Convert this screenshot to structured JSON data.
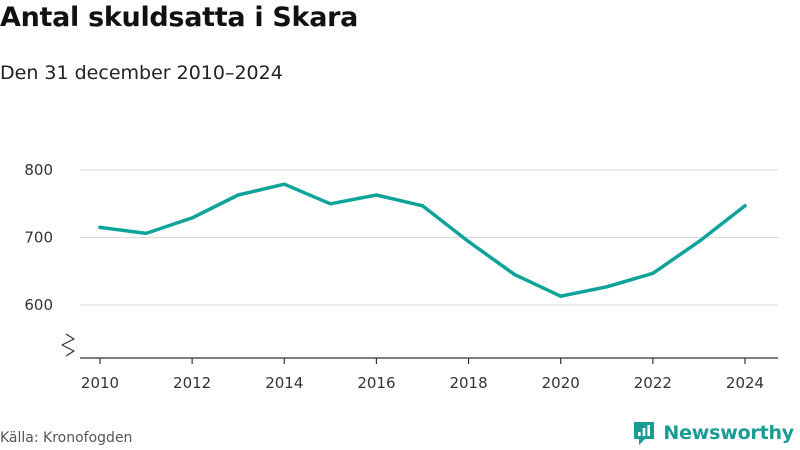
{
  "header": {
    "title": "Antal skuldsatta i Skara",
    "subtitle": "Den 31 december 2010–2024"
  },
  "footer": {
    "source": "Källa: Kronofogden",
    "brand": "Newsworthy",
    "brand_icon": "newsworthy-logo-icon"
  },
  "colors": {
    "line": "#0fa39a",
    "grid": "#d9d9d9",
    "axis": "#333333",
    "brand": "#1a9b93"
  },
  "chart_data": {
    "type": "line",
    "title": "Antal skuldsatta i Skara",
    "subtitle": "Den 31 december 2010–2024",
    "x": [
      2010,
      2011,
      2012,
      2013,
      2014,
      2015,
      2016,
      2017,
      2018,
      2019,
      2020,
      2021,
      2022,
      2023,
      2024
    ],
    "series": [
      {
        "values": [
          715,
          706,
          729,
          763,
          779,
          750,
          763,
          747,
          694,
          645,
          613,
          627,
          647,
          694,
          747
        ]
      }
    ],
    "xticks": [
      "2010",
      "2012",
      "2014",
      "2016",
      "2018",
      "2020",
      "2022",
      "2024"
    ],
    "yticks": [
      "600",
      "700",
      "800"
    ],
    "xlim": [
      2010,
      2024
    ],
    "ylim": [
      540,
      800
    ],
    "y_axis_break": true,
    "grid": "horizontal"
  }
}
